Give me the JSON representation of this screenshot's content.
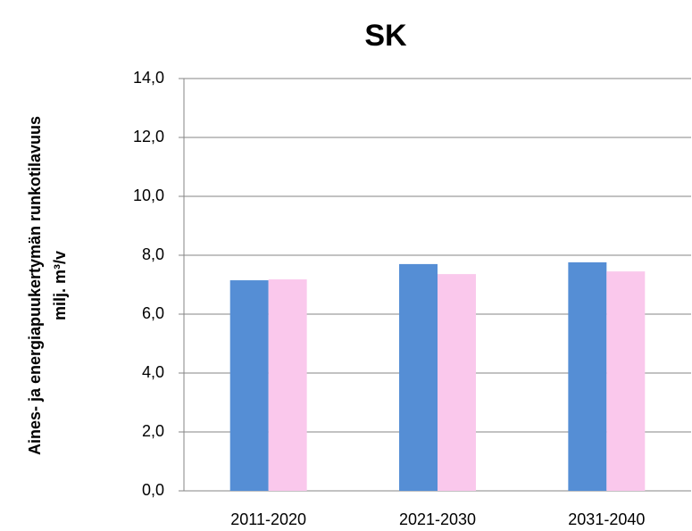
{
  "chart_data": {
    "type": "bar",
    "title": "SK",
    "ylabel": [
      "Aines- ja energiapuukertymän runkotilavuus",
      "milj. m³/v"
    ],
    "categories": [
      "2011-2020",
      "2021-2030",
      "2031-2040"
    ],
    "series": [
      {
        "color": "#558ed5",
        "values": [
          7.15,
          7.7,
          7.76
        ]
      },
      {
        "color": "#fac8ec",
        "values": [
          7.18,
          7.36,
          7.45
        ]
      }
    ],
    "ylim": [
      0,
      14
    ],
    "yticks": [
      {
        "value": 0,
        "label": "0,0"
      },
      {
        "value": 2,
        "label": "2,0"
      },
      {
        "value": 4,
        "label": "4,0"
      },
      {
        "value": 6,
        "label": "6,0"
      },
      {
        "value": 8,
        "label": "8,0"
      },
      {
        "value": 10,
        "label": "10,0"
      },
      {
        "value": 12,
        "label": "12,0"
      },
      {
        "value": 14,
        "label": "14,0"
      }
    ],
    "grid": true
  }
}
